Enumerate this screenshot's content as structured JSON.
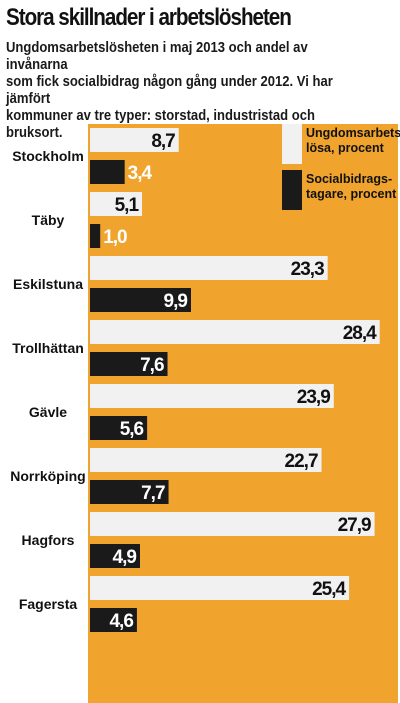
{
  "chart_data": {
    "type": "bar",
    "orientation": "horizontal",
    "title": "Stora skillnader i arbetslösheten",
    "subtitle_lines": [
      "Ungdomsarbetslösheten i maj 2013 och andel av invånarna",
      "som fick socialbidrag någon gång under 2012. Vi har jämfört",
      "kommuner av tre typer: storstad, industristad och bruksort."
    ],
    "categories": [
      "Stockholm",
      "Täby",
      "Eskilstuna",
      "Trollhättan",
      "Gävle",
      "Norrköping",
      "Hagfors",
      "Fagersta"
    ],
    "series": [
      {
        "name_lines": [
          "Ungdomsarbets-",
          "lösa, procent"
        ],
        "color": "#f1f1f1",
        "values": [
          8.7,
          5.1,
          23.3,
          28.4,
          23.9,
          22.7,
          27.9,
          25.4
        ],
        "labels": [
          "8,7",
          "5,1",
          "23,3",
          "28,4",
          "23,9",
          "22,7",
          "27,9",
          "25,4"
        ]
      },
      {
        "name_lines": [
          "Socialbidrags-",
          "tagare, procent"
        ],
        "color": "#1a1a1a",
        "values": [
          3.4,
          1.0,
          9.9,
          7.6,
          5.6,
          7.7,
          4.9,
          4.6
        ],
        "labels": [
          "3,4",
          "1,0",
          "9,9",
          "7,6",
          "5,6",
          "7,7",
          "4,9",
          "4,6"
        ]
      }
    ],
    "xlim": [
      0,
      30
    ],
    "grid": false,
    "legend_position": "top-right",
    "background_color": "#f0a32d"
  }
}
